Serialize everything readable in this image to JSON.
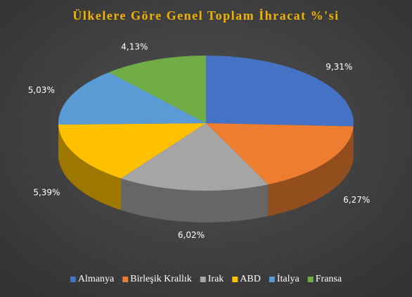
{
  "chart_data": {
    "type": "pie3d",
    "title": "Ülkelere Göre Genel Toplam İhracat %'si",
    "categories": [
      "Almanya",
      "Birleşik Krallık",
      "Irak",
      "ABD",
      "İtalya",
      "Fransa"
    ],
    "values": [
      9.31,
      6.27,
      6.02,
      5.39,
      5.03,
      4.13
    ],
    "value_labels": [
      "9,31%",
      "6,27%",
      "6,02%",
      "5,39%",
      "5,03%",
      "4,13%"
    ],
    "colors": [
      "#4472c4",
      "#ed7d31",
      "#a5a5a5",
      "#ffc000",
      "#5b9bd5",
      "#70ad47"
    ],
    "legend": "bottom"
  }
}
